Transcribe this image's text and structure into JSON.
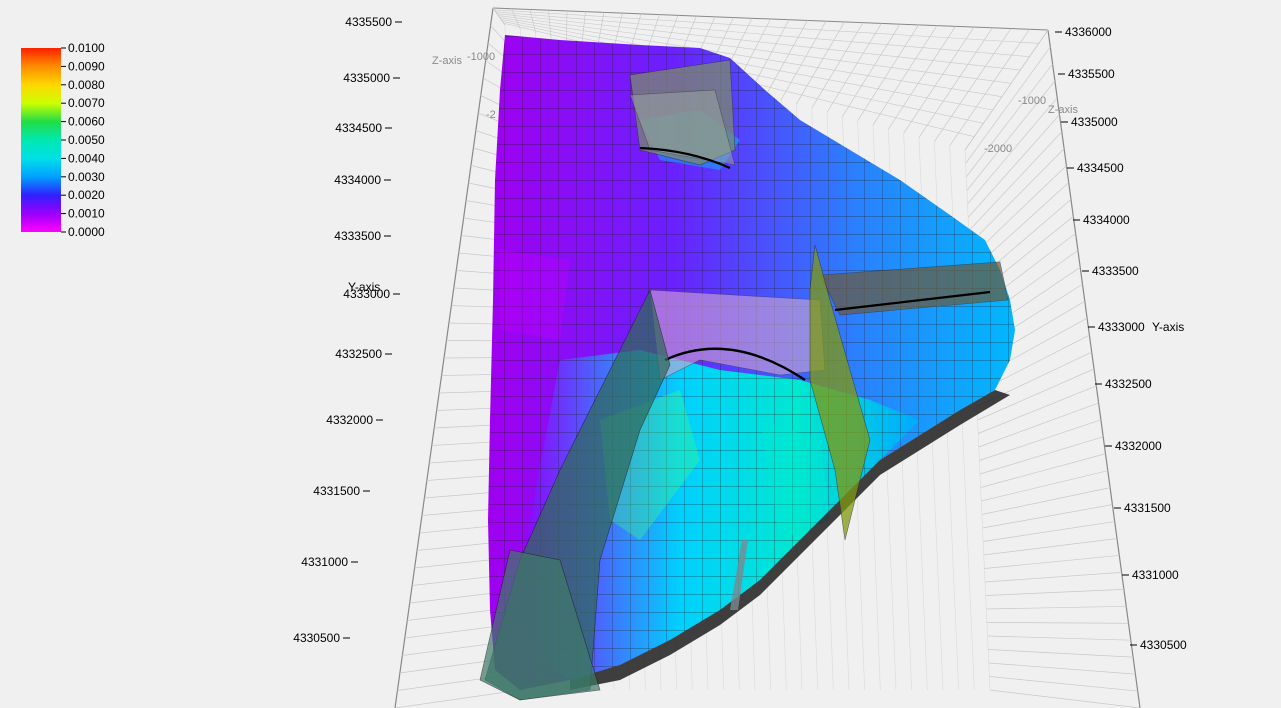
{
  "legend": {
    "labels": [
      "0.0100",
      "0.0090",
      "0.0080",
      "0.0070",
      "0.0060",
      "0.0050",
      "0.0040",
      "0.0030",
      "0.0020",
      "0.0010",
      "0.0000"
    ],
    "stops": [
      "#ff2000",
      "#ff8c00",
      "#ffd700",
      "#ccff00",
      "#22dd44",
      "#00e8b0",
      "#00e0e8",
      "#00a0ff",
      "#3020ff",
      "#9900ff",
      "#ff00ff"
    ]
  },
  "axes": {
    "left_y_title": "Y-axis",
    "right_y_title": "Y-axis",
    "z_title_top": "Z-axis",
    "z_title_right": "Z-axis",
    "left_y_ticks": [
      "4335500",
      "4335000",
      "4334500",
      "4334000",
      "4333500",
      "4333000",
      "4332500",
      "4332000",
      "4331500",
      "4331000",
      "4330500"
    ],
    "right_y_ticks": [
      "4336000",
      "4335500",
      "4335000",
      "4334500",
      "4334000",
      "4333500",
      "4333000",
      "4332500",
      "4332000",
      "4331500",
      "4331000",
      "4330500"
    ],
    "z_ticks_top": [
      "-1000",
      "-2"
    ],
    "z_ticks_right": [
      "-1000",
      "-2000"
    ]
  },
  "colors": {
    "background": "#f0f0f0",
    "grid": "#c8c8c8",
    "surface_low": "#9900ff",
    "surface_mid": "#00a0ff",
    "surface_high": "#00e8b0",
    "fault_green": "#2f6a5a",
    "fault_olive": "#7a8a20",
    "fault_pink": "#c8a0c8",
    "fault_brown": "#6a5a3a"
  }
}
